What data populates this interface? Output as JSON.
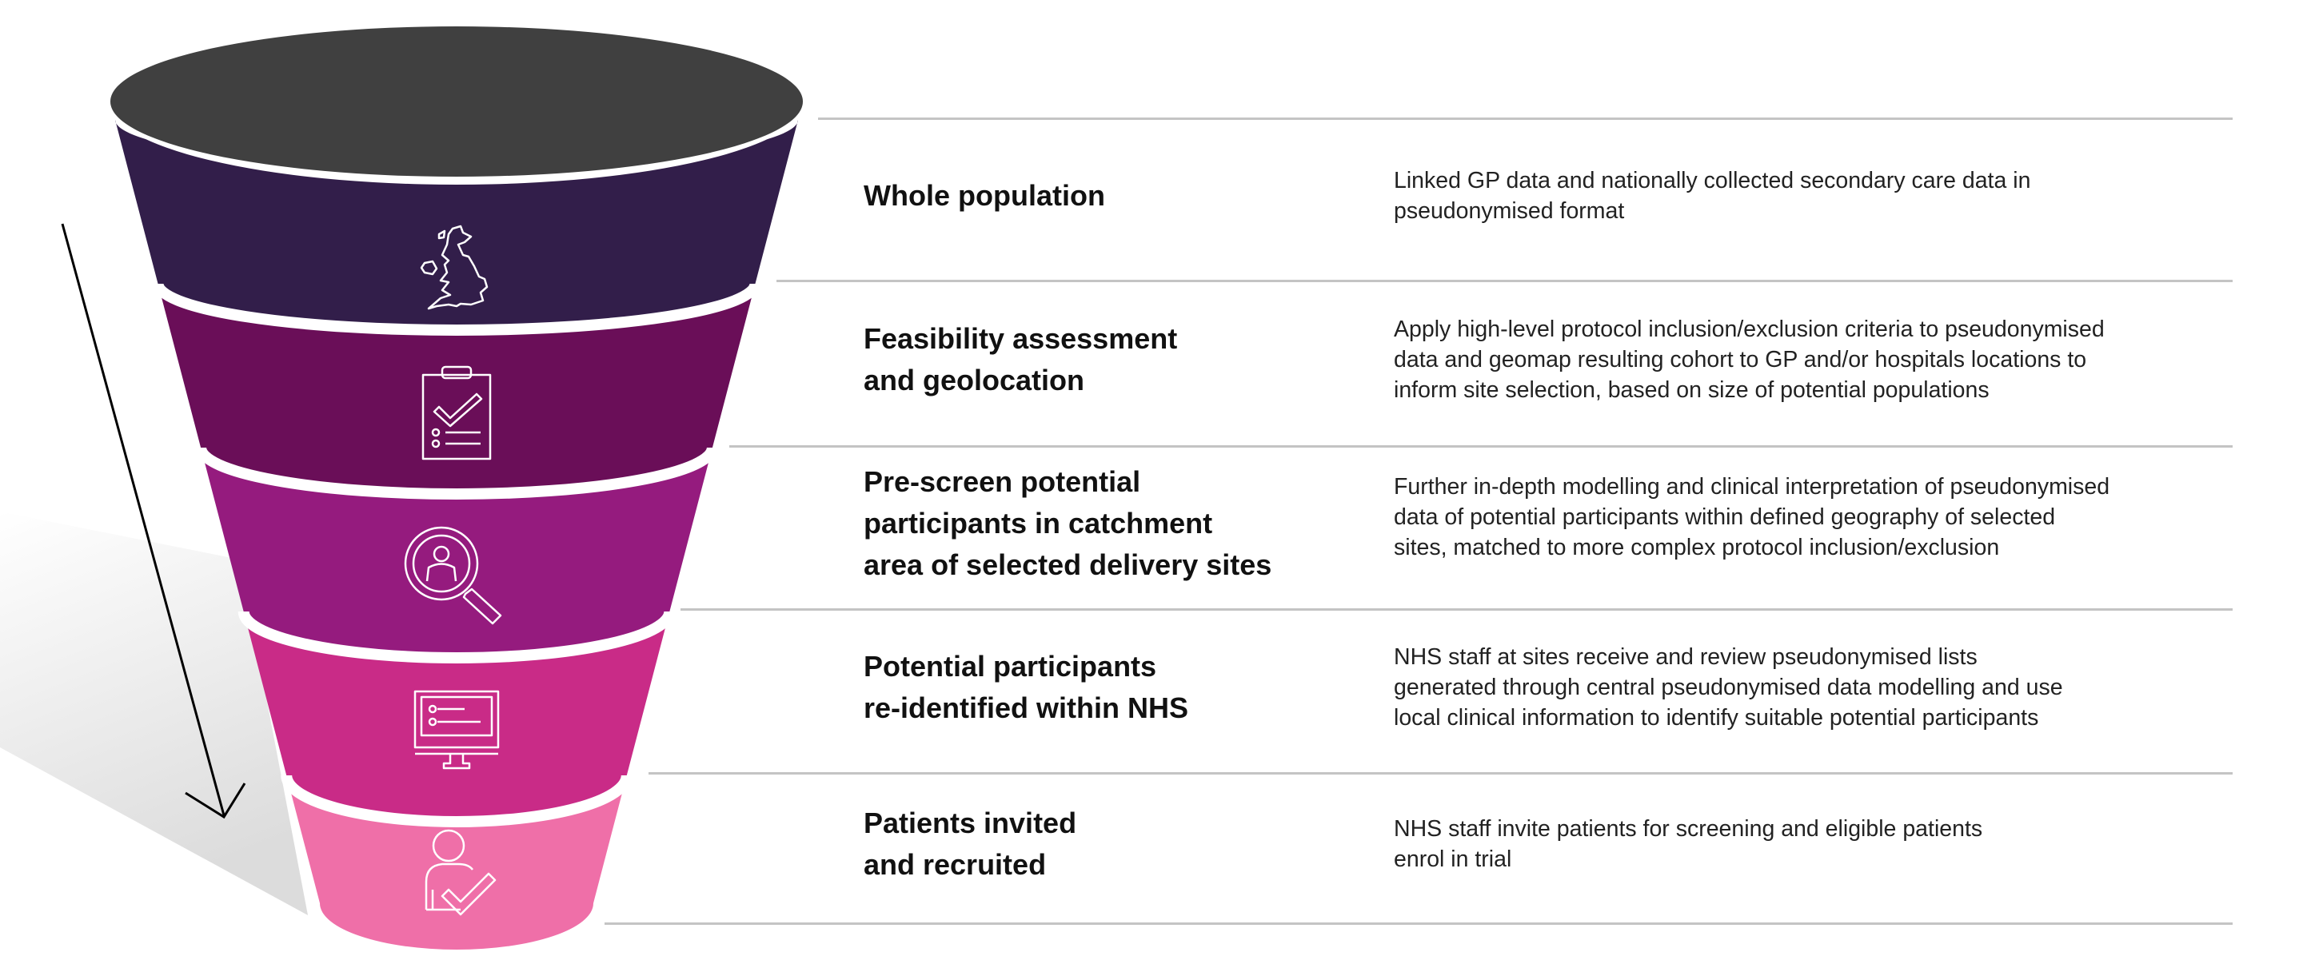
{
  "colors": {
    "funnel_top": "#404040",
    "stage_colors": [
      "#321e4a",
      "#6a0e58",
      "#951b7e",
      "#c92b87",
      "#ef6fa8"
    ],
    "separator": "#c4c4c4",
    "arrow": "#000000"
  },
  "stages": [
    {
      "icon": "uk-map-icon",
      "title": "Whole population",
      "description": "Linked GP data and nationally collected secondary care data in\npseudonymised format"
    },
    {
      "icon": "clipboard-check-icon",
      "title": "Feasibility assessment\nand geolocation",
      "description": "Apply high-level protocol inclusion/exclusion criteria to pseudonymised\ndata and geomap resulting cohort to GP and/or hospitals locations to\ninform site selection, based on size of potential populations"
    },
    {
      "icon": "magnifier-person-icon",
      "title": "Pre-screen potential\nparticipants in catchment\narea of selected delivery sites",
      "description": "Further in-depth modelling and clinical interpretation of pseudonymised\ndata of potential participants within defined geography of selected\nsites, matched to more complex protocol inclusion/exclusion"
    },
    {
      "icon": "monitor-list-icon",
      "title": "Potential participants\nre-identified within NHS",
      "description": "NHS staff at sites receive and review pseudonymised lists\ngenerated through central pseudonymised data modelling and use\nlocal clinical information to identify suitable potential participants"
    },
    {
      "icon": "person-check-icon",
      "title": "Patients invited\nand recruited",
      "description": "NHS staff invite patients for screening and eligible patients\nenrol in trial"
    }
  ]
}
